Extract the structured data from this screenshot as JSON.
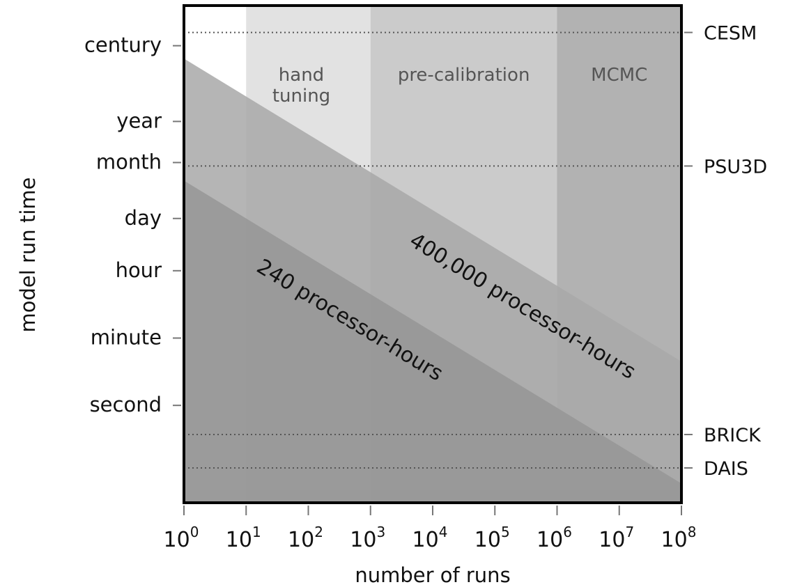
{
  "chart_data": {
    "type": "area",
    "xlabel": "number of runs",
    "ylabel": "model run time",
    "x_scale": "log10",
    "xlim": [
      1,
      100000000
    ],
    "x_ticks": [
      {
        "base": "10",
        "exp": "0",
        "value": 1
      },
      {
        "base": "10",
        "exp": "1",
        "value": 10
      },
      {
        "base": "10",
        "exp": "2",
        "value": 100
      },
      {
        "base": "10",
        "exp": "3",
        "value": 1000
      },
      {
        "base": "10",
        "exp": "4",
        "value": 10000
      },
      {
        "base": "10",
        "exp": "5",
        "value": 100000
      },
      {
        "base": "10",
        "exp": "6",
        "value": 1000000
      },
      {
        "base": "10",
        "exp": "7",
        "value": 10000000
      },
      {
        "base": "10",
        "exp": "8",
        "value": 100000000
      }
    ],
    "y_scale": "log10",
    "y_units": "seconds",
    "ylim": [
      0.0223,
      7070000000
    ],
    "y_ticks_left": [
      {
        "label": "century",
        "seconds": 3156000000
      },
      {
        "label": "year",
        "seconds": 31560000
      },
      {
        "label": "month",
        "seconds": 2592000
      },
      {
        "label": "day",
        "seconds": 86400
      },
      {
        "label": "hour",
        "seconds": 3600
      },
      {
        "label": "minute",
        "seconds": 60
      },
      {
        "label": "second",
        "seconds": 1
      }
    ],
    "reference_models": [
      {
        "label": "CESM",
        "seconds": 7070000000
      },
      {
        "label": "PSU3D",
        "seconds": 2100000
      },
      {
        "label": "BRICK",
        "seconds": 0.17
      },
      {
        "label": "DAIS",
        "seconds": 0.0223
      }
    ],
    "regions": [
      {
        "label": "hand\ntuning",
        "x_from": 10,
        "x_to": 1000,
        "color": "#e2e2e2"
      },
      {
        "label": "pre-calibration",
        "x_from": 1000,
        "x_to": 1000000,
        "color": "#cbcbcb"
      },
      {
        "label": "MCMC",
        "x_from": 1000000,
        "x_to": 100000000,
        "color": "#b2b2b2"
      }
    ],
    "budget_bands": [
      {
        "label": "400,000 processor-hours",
        "processor_hours": 400000,
        "color": "#a8a8a8"
      },
      {
        "label": "240 processor-hours",
        "processor_hours": 240,
        "color": "#939393"
      }
    ],
    "grid": false
  }
}
